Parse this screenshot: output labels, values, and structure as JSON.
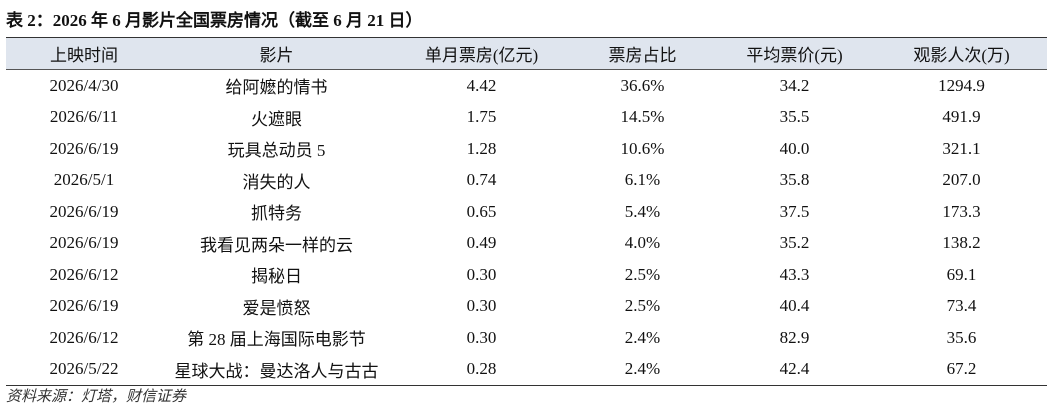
{
  "title": "表 2：2026 年 6 月影片全国票房情况（截至 6 月 21 日）",
  "table": {
    "headers": [
      "上映时间",
      "影片",
      "单月票房(亿元)",
      "票房占比",
      "平均票价(元)",
      "观影人次(万)"
    ],
    "rows": [
      [
        "2026/4/30",
        "给阿嬷的情书",
        "4.42",
        "36.6%",
        "34.2",
        "1294.9"
      ],
      [
        "2026/6/11",
        "火遮眼",
        "1.75",
        "14.5%",
        "35.5",
        "491.9"
      ],
      [
        "2026/6/19",
        "玩具总动员 5",
        "1.28",
        "10.6%",
        "40.0",
        "321.1"
      ],
      [
        "2026/5/1",
        "消失的人",
        "0.74",
        "6.1%",
        "35.8",
        "207.0"
      ],
      [
        "2026/6/19",
        "抓特务",
        "0.65",
        "5.4%",
        "37.5",
        "173.3"
      ],
      [
        "2026/6/19",
        "我看见两朵一样的云",
        "0.49",
        "4.0%",
        "35.2",
        "138.2"
      ],
      [
        "2026/6/12",
        "揭秘日",
        "0.30",
        "2.5%",
        "43.3",
        "69.1"
      ],
      [
        "2026/6/19",
        "爱是愤怒",
        "0.30",
        "2.5%",
        "40.4",
        "73.4"
      ],
      [
        "2026/6/12",
        "第 28 届上海国际电影节",
        "0.30",
        "2.4%",
        "82.9",
        "35.6"
      ],
      [
        "2026/5/22",
        "星球大战：曼达洛人与古古",
        "0.28",
        "2.4%",
        "42.4",
        "67.2"
      ]
    ]
  },
  "source": "资料来源：灯塔，财信证券"
}
